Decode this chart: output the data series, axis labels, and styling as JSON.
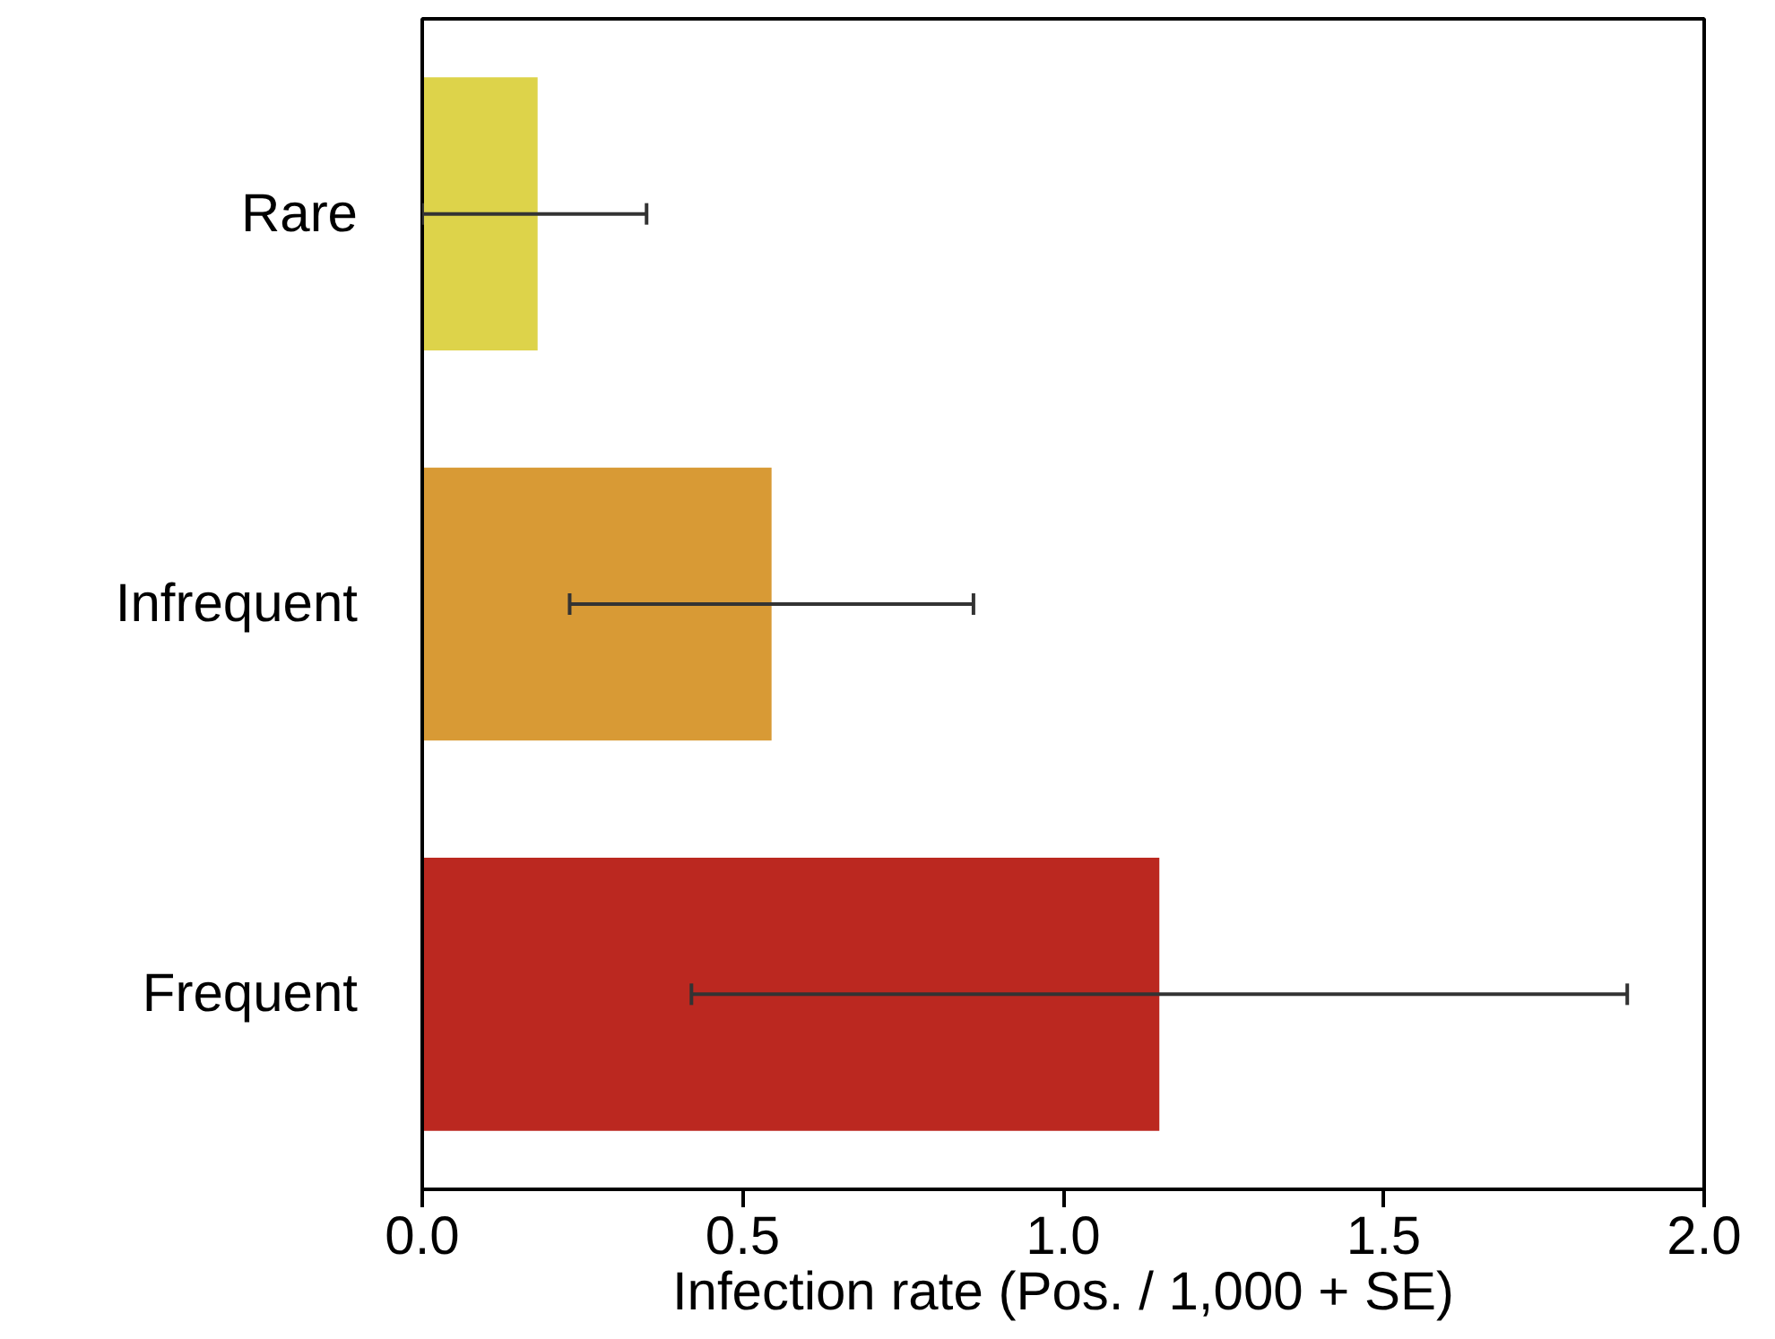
{
  "chart_data": {
    "type": "bar",
    "orientation": "horizontal",
    "categories": [
      "Rare",
      "Infrequent",
      "Frequent"
    ],
    "values": [
      0.18,
      0.545,
      1.15
    ],
    "colors": [
      "#ddd34a",
      "#d89a35",
      "#bb2820"
    ],
    "errors": [
      [
        0.0,
        0.35
      ],
      [
        0.23,
        0.86
      ],
      [
        0.42,
        1.88
      ]
    ],
    "xlabel": "Infection rate (Pos. / 1,000 + SE)",
    "xlim": [
      0,
      2.0
    ],
    "xticks": [
      {
        "value": 0,
        "label": "0.0"
      },
      0.5,
      {
        "value": 1,
        "label": "1.0"
      },
      1.5,
      {
        "value": 2,
        "label": "2.0"
      }
    ],
    "grid": false
  }
}
